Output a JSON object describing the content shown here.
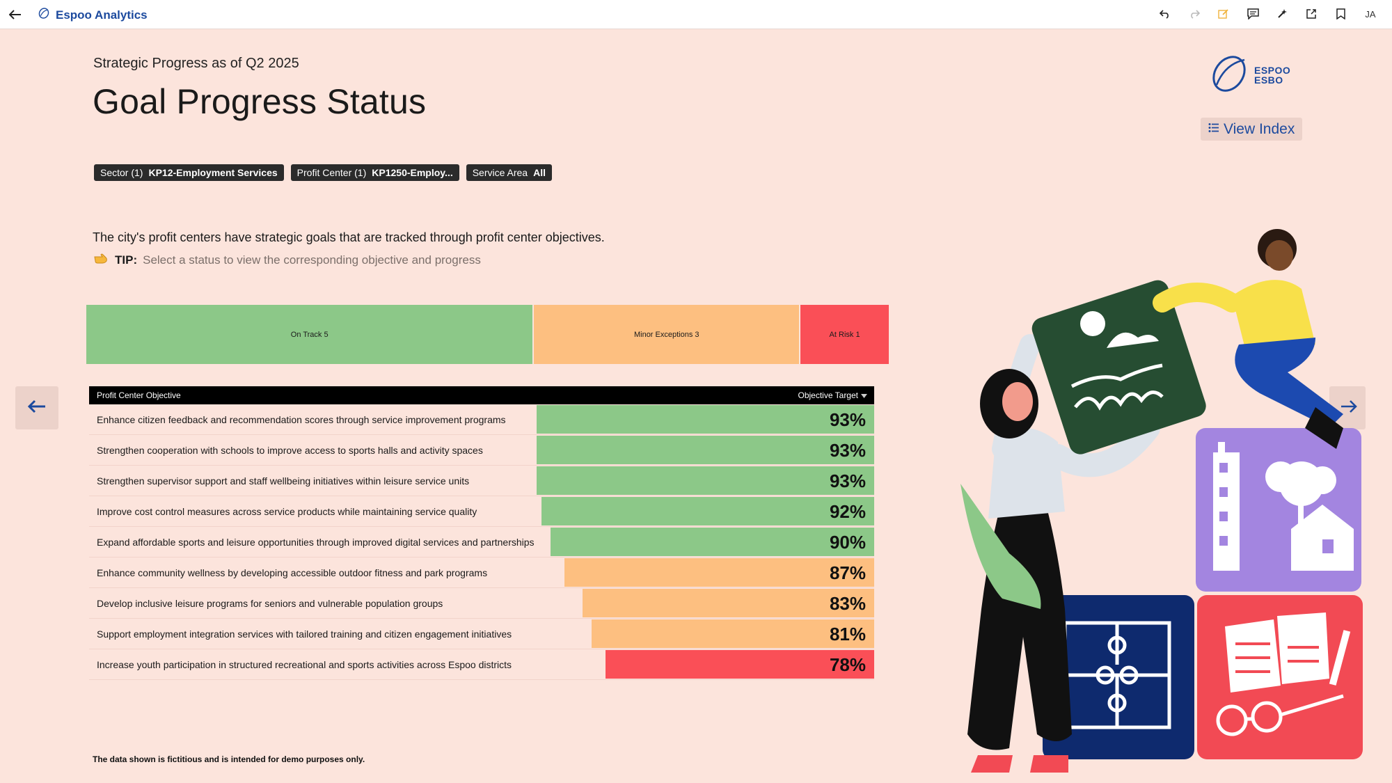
{
  "app": {
    "name": "Espoo Analytics",
    "user_initials": "JA"
  },
  "header": {
    "subtitle": "Strategic Progress as of Q2 2025",
    "title": "Goal Progress Status",
    "logo_line1": "ESPOO",
    "logo_line2": "ESBO",
    "view_index_label": "View Index"
  },
  "filters": [
    {
      "name": "Sector (1)",
      "value": "KP12-Employment Services"
    },
    {
      "name": "Profit Center (1)",
      "value": "KP1250-Employ..."
    },
    {
      "name": "Service Area",
      "value": "All"
    }
  ],
  "intro": {
    "text": "The city's profit centers have strategic goals that are tracked through profit center objectives.",
    "tip_label": "TIP:",
    "tip_text": "Select a status to view the corresponding objective and progress"
  },
  "status_summary": [
    {
      "label": "On Track 5",
      "count": 5,
      "color": "#8cc888"
    },
    {
      "label": "Minor Exceptions 3",
      "count": 3,
      "color": "#fdbf80"
    },
    {
      "label": "At Risk 1",
      "count": 1,
      "color": "#fa4f57"
    }
  ],
  "table": {
    "col_objective": "Profit Center Objective",
    "col_target": "Objective Target",
    "rows": [
      {
        "objective": "Enhance citizen feedback and recommendation scores through service improvement programs",
        "pct_text": "93%",
        "value": 93,
        "color": "#8cc888"
      },
      {
        "objective": "Strengthen cooperation with schools to improve access to sports halls and activity spaces",
        "pct_text": "93%",
        "value": 93,
        "color": "#8cc888"
      },
      {
        "objective": "Strengthen supervisor support and staff wellbeing initiatives within leisure service units",
        "pct_text": "93%",
        "value": 93,
        "color": "#8cc888"
      },
      {
        "objective": "Improve cost control measures across service products while maintaining service quality",
        "pct_text": "92%",
        "value": 92,
        "color": "#8cc888"
      },
      {
        "objective": "Expand affordable sports and leisure opportunities through improved digital services and partnerships",
        "pct_text": "90%",
        "value": 90,
        "color": "#8cc888"
      },
      {
        "objective": "Enhance community wellness by developing accessible outdoor fitness and park programs",
        "pct_text": "87%",
        "value": 87,
        "color": "#fdbf80"
      },
      {
        "objective": "Develop inclusive leisure programs for seniors and vulnerable population groups",
        "pct_text": "83%",
        "value": 83,
        "color": "#fdbf80"
      },
      {
        "objective": "Support employment integration services with tailored training and citizen engagement initiatives",
        "pct_text": "81%",
        "value": 81,
        "color": "#fdbf80"
      },
      {
        "objective": "Increase youth participation in structured recreational and sports activities across Espoo districts",
        "pct_text": "78%",
        "value": 78,
        "color": "#fa4f57"
      }
    ]
  },
  "footnote": "The data shown is fictitious and is intended for demo purposes only.",
  "icons": {
    "back": "arrow-left-icon",
    "undo": "undo-icon",
    "redo": "redo-icon",
    "edit": "edit-icon",
    "comment": "comment-icon",
    "magic": "sparkle-icon",
    "share": "share-icon",
    "bookmark": "bookmark-icon"
  }
}
